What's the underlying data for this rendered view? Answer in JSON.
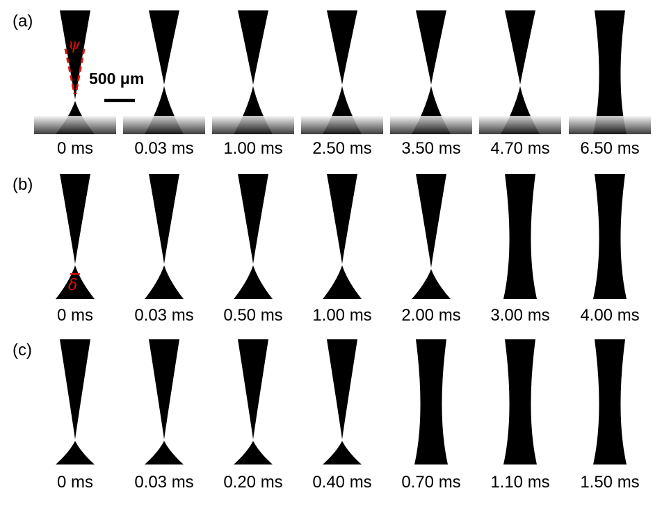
{
  "rows": [
    {
      "label": "(a)",
      "times": [
        "0 ms",
        "0.03 ms",
        "1.00 ms",
        "2.50 ms",
        "3.50 ms",
        "4.70 ms",
        "6.50 ms"
      ]
    },
    {
      "label": "(b)",
      "times": [
        "0 ms",
        "0.03 ms",
        "0.50 ms",
        "1.00 ms",
        "2.00 ms",
        "3.00 ms",
        "4.00 ms"
      ]
    },
    {
      "label": "(c)",
      "times": [
        "0 ms",
        "0.03 ms",
        "0.20 ms",
        "0.40 ms",
        "0.70 ms",
        "1.10 ms",
        "1.50 ms"
      ]
    }
  ],
  "scale_bar": {
    "label": "500 μm"
  },
  "annotations": {
    "angle_symbol": "ψ",
    "gap_symbol": "δ"
  },
  "colors": {
    "liquid": "#000000",
    "annotation": "#e01010"
  }
}
